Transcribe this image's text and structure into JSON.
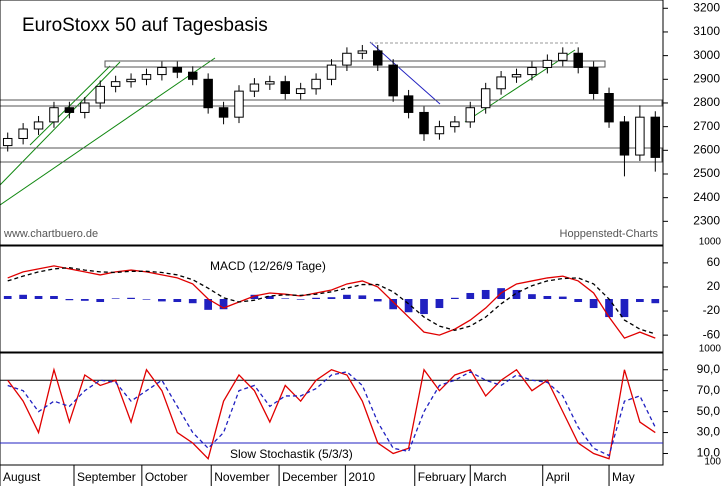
{
  "chart_data": [
    {
      "type": "candlestick",
      "title": "EuroStoxx 50 auf Tagesbasis",
      "annotations": [
        "www.chartbuero.de",
        "Hoppenstedt-Charts"
      ],
      "scale_note": "1000",
      "open": [
        2620,
        2650,
        2690,
        2720,
        2780,
        2760,
        2800,
        2870,
        2890,
        2900,
        2920,
        2950,
        2930,
        2900,
        2780,
        2740,
        2850,
        2880,
        2890,
        2840,
        2860,
        2900,
        2960,
        3010,
        3020,
        2960,
        2830,
        2760,
        2670,
        2700,
        2720,
        2780,
        2860,
        2910,
        2920,
        2950,
        2980,
        3010,
        2950,
        2840,
        2720,
        2580,
        2740
      ],
      "high": [
        2675,
        2715,
        2745,
        2805,
        2805,
        2825,
        2895,
        2915,
        2925,
        2945,
        2975,
        2975,
        2955,
        2925,
        2805,
        2875,
        2905,
        2915,
        2915,
        2885,
        2925,
        2985,
        3035,
        3045,
        3045,
        2985,
        2855,
        2785,
        2725,
        2745,
        2805,
        2885,
        2935,
        2945,
        2975,
        3005,
        3035,
        3035,
        2975,
        2865,
        2745,
        2790,
        2765
      ],
      "low": [
        2595,
        2625,
        2665,
        2695,
        2735,
        2735,
        2775,
        2845,
        2865,
        2875,
        2895,
        2905,
        2875,
        2755,
        2710,
        2715,
        2825,
        2855,
        2815,
        2815,
        2835,
        2875,
        2935,
        2985,
        2935,
        2805,
        2735,
        2640,
        2645,
        2675,
        2695,
        2755,
        2835,
        2885,
        2895,
        2925,
        2955,
        2925,
        2815,
        2695,
        2490,
        2555,
        2510
      ],
      "close": [
        2650,
        2690,
        2720,
        2780,
        2760,
        2800,
        2870,
        2890,
        2900,
        2920,
        2950,
        2930,
        2900,
        2780,
        2740,
        2850,
        2880,
        2890,
        2840,
        2860,
        2900,
        2960,
        3010,
        3020,
        2960,
        2830,
        2760,
        2670,
        2700,
        2720,
        2780,
        2860,
        2910,
        2920,
        2950,
        2980,
        3010,
        2950,
        2840,
        2720,
        2580,
        2740,
        2570
      ],
      "xlim": [
        -0.5,
        42.5
      ],
      "xticks": [
        {
          "value": -0.5,
          "label": "August"
        },
        {
          "value": 4.3,
          "label": "September"
        },
        {
          "value": 8.7,
          "label": "October"
        },
        {
          "value": 13.2,
          "label": "November"
        },
        {
          "value": 17.6,
          "label": "December"
        },
        {
          "value": 21.9,
          "label": "2010"
        },
        {
          "value": 26.4,
          "label": "February"
        },
        {
          "value": 30,
          "label": "March"
        },
        {
          "value": 34.7,
          "label": "April"
        },
        {
          "value": 39,
          "label": "May"
        }
      ],
      "ylim": [
        2200,
        3235
      ],
      "yticks": [
        2300,
        2400,
        2500,
        2600,
        2700,
        2800,
        2900,
        3000,
        3100,
        3200
      ]
    },
    {
      "type": "macd",
      "title": "MACD (12/26/9 Tage)",
      "scale_note": "1000",
      "xlim": [
        -0.5,
        42.5
      ],
      "ylim": [
        -88,
        88
      ],
      "yticks": [
        60,
        20,
        -20,
        -60
      ],
      "series": [
        {
          "color": "#e00000",
          "values": [
            35,
            45,
            50,
            55,
            50,
            45,
            40,
            45,
            48,
            45,
            40,
            35,
            25,
            0,
            -15,
            -5,
            5,
            10,
            8,
            5,
            10,
            15,
            25,
            30,
            20,
            -5,
            -30,
            -55,
            -60,
            -50,
            -35,
            -15,
            10,
            25,
            30,
            35,
            38,
            30,
            10,
            -30,
            -65,
            -55,
            -65
          ]
        },
        {
          "color": "#000000",
          "values": [
            30,
            38,
            45,
            50,
            52,
            48,
            45,
            44,
            46,
            46,
            44,
            40,
            32,
            18,
            2,
            -5,
            -2,
            5,
            7,
            6,
            8,
            12,
            18,
            24,
            24,
            12,
            -8,
            -30,
            -45,
            -52,
            -45,
            -30,
            -8,
            10,
            22,
            30,
            34,
            35,
            25,
            0,
            -35,
            -50,
            -58
          ]
        },
        {
          "color": "#2020c0",
          "values": [
            5,
            7,
            5,
            5,
            -2,
            -3,
            -5,
            1,
            2,
            -1,
            -4,
            -5,
            -7,
            -18,
            -17,
            0,
            7,
            5,
            1,
            -1,
            2,
            3,
            7,
            6,
            -4,
            -17,
            -22,
            -25,
            -15,
            2,
            10,
            15,
            18,
            15,
            8,
            5,
            4,
            -5,
            -15,
            -30,
            -30,
            -5,
            -7
          ]
        }
      ]
    },
    {
      "type": "stochastic",
      "title": "Slow Stochastik (5/3/3)",
      "scale_note": "100",
      "xlim": [
        -0.5,
        42.5
      ],
      "ylim": [
        -1,
        106
      ],
      "yticks": [
        {
          "value": 90,
          "label": "90,0"
        },
        {
          "value": 70,
          "label": "70,0"
        },
        {
          "value": 50,
          "label": "50,0"
        },
        {
          "value": 30,
          "label": "30,0"
        },
        {
          "value": 10,
          "label": "10,0"
        }
      ],
      "levels": [
        80,
        20
      ],
      "series": [
        {
          "color": "#e00000",
          "values": [
            80,
            60,
            30,
            90,
            40,
            85,
            75,
            80,
            40,
            90,
            70,
            30,
            20,
            5,
            60,
            85,
            70,
            40,
            75,
            60,
            80,
            90,
            85,
            60,
            20,
            10,
            15,
            90,
            70,
            85,
            90,
            65,
            80,
            90,
            70,
            80,
            50,
            20,
            10,
            5,
            90,
            40,
            30
          ]
        },
        {
          "color": "#2020c0",
          "values": [
            75,
            70,
            50,
            60,
            55,
            70,
            80,
            78,
            60,
            70,
            80,
            55,
            30,
            15,
            30,
            70,
            75,
            55,
            65,
            65,
            72,
            85,
            88,
            75,
            40,
            15,
            12,
            50,
            75,
            80,
            88,
            80,
            75,
            85,
            80,
            78,
            65,
            35,
            15,
            8,
            60,
            65,
            35
          ]
        }
      ]
    }
  ]
}
